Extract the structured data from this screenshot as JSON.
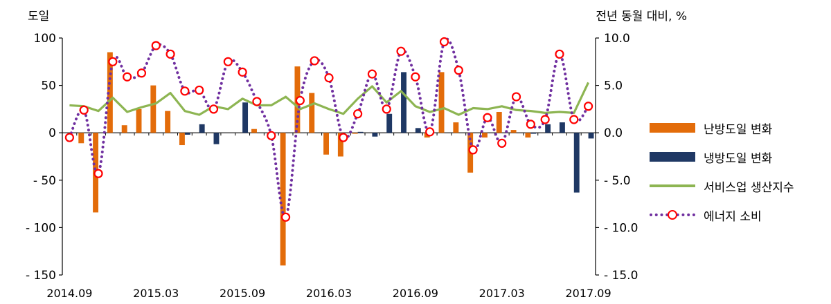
{
  "chart_data": {
    "type": "bar+line",
    "left_axis_title": "도일",
    "right_axis_title": "전년 동월 대비, %",
    "left_ylim": [
      -150,
      100
    ],
    "left_ticks": [
      100,
      50,
      0,
      -50,
      -100,
      -150
    ],
    "left_tick_labels": [
      "100",
      "50",
      "0",
      "- 50",
      "- 100",
      "- 150"
    ],
    "right_ylim": [
      -15.0,
      10.0
    ],
    "right_ticks": [
      10,
      5,
      0,
      -5,
      -10,
      -15
    ],
    "right_tick_labels": [
      "10.0",
      "5.0",
      "0.0",
      "- 5.0",
      "- 10.0",
      "- 15.0"
    ],
    "x_tick_labels": [
      "2014.09",
      "2015.03",
      "2015.09",
      "2016.03",
      "2016.09",
      "2017.03",
      "2017.09"
    ],
    "x_tick_index": [
      0,
      6,
      12,
      18,
      24,
      30,
      36
    ],
    "categories": [
      "2014.09",
      "2014.10",
      "2014.11",
      "2014.12",
      "2015.01",
      "2015.02",
      "2015.03",
      "2015.04",
      "2015.05",
      "2015.06",
      "2015.07",
      "2015.08",
      "2015.09",
      "2015.10",
      "2015.11",
      "2015.12",
      "2016.01",
      "2016.02",
      "2016.03",
      "2016.04",
      "2016.05",
      "2016.06",
      "2016.07",
      "2016.08",
      "2016.09",
      "2016.10",
      "2016.11",
      "2016.12",
      "2017.01",
      "2017.02",
      "2017.03",
      "2017.04",
      "2017.05",
      "2017.06",
      "2017.07",
      "2017.08",
      "2017.09"
    ],
    "series": [
      {
        "name": "난방도일 변화",
        "axis": "left",
        "kind": "bar",
        "color": "#e36c0a",
        "values": [
          0,
          -11,
          -84,
          85,
          8,
          25,
          50,
          23,
          -13,
          0,
          0,
          0,
          0,
          4,
          0,
          -140,
          70,
          42,
          -23,
          -25,
          -1,
          0,
          0,
          0,
          0,
          -5,
          64,
          11,
          -42,
          -5,
          22,
          3,
          -5,
          0,
          0,
          0,
          0
        ]
      },
      {
        "name": "냉방도일 변화",
        "axis": "left",
        "kind": "bar",
        "color": "#1f3864",
        "values": [
          0,
          0,
          0,
          0,
          0,
          0,
          0,
          0,
          -2,
          9,
          -12,
          0,
          32,
          0,
          0,
          0,
          0,
          0,
          0,
          0,
          1,
          -4,
          20,
          64,
          5,
          0,
          0,
          0,
          0,
          0,
          0,
          0,
          -1,
          9,
          11,
          -63,
          -6
        ]
      },
      {
        "name": "서비스업 생산지수",
        "axis": "right",
        "kind": "line",
        "color": "#8db552",
        "values": [
          2.9,
          2.8,
          2.3,
          3.7,
          2.2,
          2.7,
          3.1,
          4.2,
          2.3,
          1.9,
          2.8,
          2.5,
          3.6,
          2.9,
          2.9,
          3.8,
          2.5,
          3.1,
          2.5,
          2.0,
          3.6,
          4.9,
          3.2,
          4.4,
          2.8,
          2.2,
          2.6,
          1.9,
          2.6,
          2.5,
          2.8,
          2.4,
          2.3,
          2.1,
          2.2,
          2.1,
          5.3
        ]
      },
      {
        "name": "에너지 소비",
        "axis": "right",
        "kind": "dotted-line-marker",
        "color": "#7030a0",
        "marker_color": "#ff0000",
        "values": [
          -0.5,
          2.4,
          -4.3,
          7.5,
          5.9,
          6.3,
          9.2,
          8.3,
          4.4,
          4.5,
          2.5,
          7.5,
          6.4,
          3.3,
          -0.3,
          -8.9,
          3.4,
          7.6,
          5.8,
          -0.5,
          2.0,
          6.2,
          2.5,
          8.6,
          5.9,
          0.1,
          9.6,
          6.6,
          -1.8,
          1.6,
          -1.1,
          3.8,
          0.9,
          1.4,
          8.3,
          1.4,
          2.8
        ]
      }
    ],
    "grid": false,
    "legend_position": "right"
  }
}
